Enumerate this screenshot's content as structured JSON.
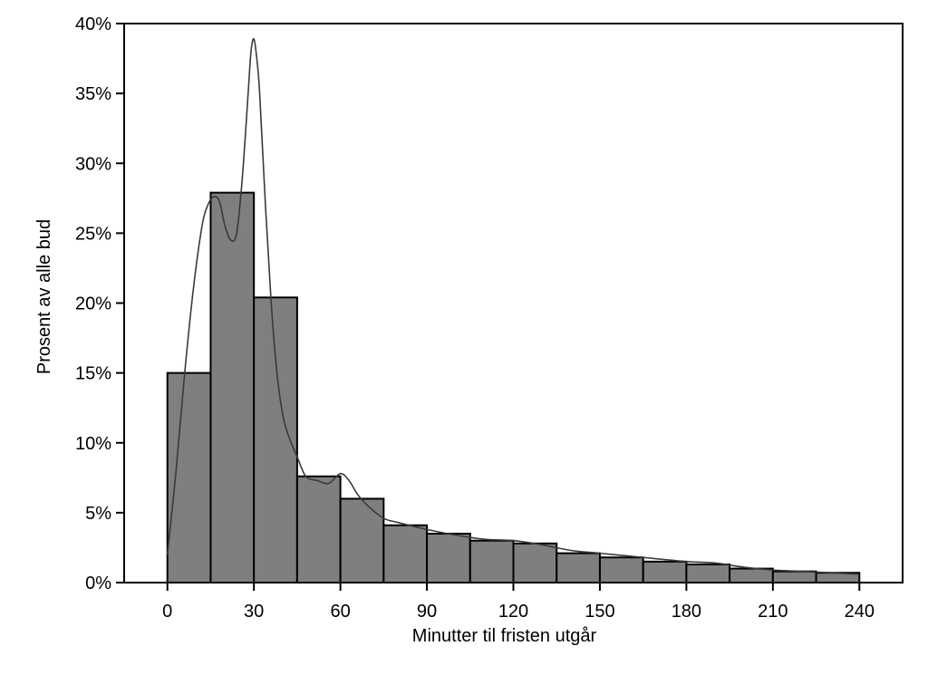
{
  "chart_data": {
    "type": "bar",
    "xlabel": "Minutter til fristen utgår",
    "ylabel": "Prosent av alle bud",
    "xlim": [
      -15,
      255
    ],
    "ylim": [
      0,
      40
    ],
    "x_ticks": [
      0,
      30,
      60,
      90,
      120,
      150,
      180,
      210,
      240
    ],
    "x_tick_labels": [
      "0",
      "30",
      "60",
      "90",
      "120",
      "150",
      "180",
      "210",
      "240"
    ],
    "y_ticks": [
      0,
      5,
      10,
      15,
      20,
      25,
      30,
      35,
      40
    ],
    "y_tick_labels": [
      "0%",
      "5%",
      "10%",
      "15%",
      "20%",
      "25%",
      "30%",
      "35%",
      "40%"
    ],
    "bin_width": 15,
    "bins": [
      {
        "start": 0,
        "end": 15,
        "value": 15.0
      },
      {
        "start": 15,
        "end": 30,
        "value": 27.9
      },
      {
        "start": 30,
        "end": 45,
        "value": 20.4
      },
      {
        "start": 45,
        "end": 60,
        "value": 7.6
      },
      {
        "start": 60,
        "end": 75,
        "value": 6.0
      },
      {
        "start": 75,
        "end": 90,
        "value": 4.1
      },
      {
        "start": 90,
        "end": 105,
        "value": 3.5
      },
      {
        "start": 105,
        "end": 120,
        "value": 3.0
      },
      {
        "start": 120,
        "end": 135,
        "value": 2.8
      },
      {
        "start": 135,
        "end": 150,
        "value": 2.1
      },
      {
        "start": 150,
        "end": 165,
        "value": 1.8
      },
      {
        "start": 165,
        "end": 180,
        "value": 1.5
      },
      {
        "start": 180,
        "end": 195,
        "value": 1.3
      },
      {
        "start": 195,
        "end": 210,
        "value": 1.0
      },
      {
        "start": 210,
        "end": 225,
        "value": 0.8
      },
      {
        "start": 225,
        "end": 240,
        "value": 0.7
      }
    ],
    "density_curve": {
      "x": [
        0,
        3,
        6,
        9,
        12,
        14,
        16,
        18,
        20,
        22,
        24,
        26,
        28,
        29,
        30,
        31,
        32,
        34,
        36,
        38,
        40,
        42,
        45,
        48,
        52,
        56,
        60,
        63,
        66,
        70,
        75,
        80,
        90,
        100,
        110,
        120,
        130,
        140,
        150,
        160,
        170,
        180,
        190,
        200,
        210,
        220,
        230,
        240
      ],
      "y": [
        2.0,
        8.0,
        15.0,
        21.0,
        25.5,
        27.0,
        27.6,
        27.3,
        25.5,
        24.5,
        25.0,
        29.0,
        35.0,
        38.0,
        38.9,
        37.5,
        35.0,
        27.0,
        20.0,
        15.0,
        12.0,
        10.5,
        9.0,
        7.6,
        7.3,
        7.1,
        7.8,
        7.3,
        6.3,
        5.4,
        4.6,
        4.3,
        3.8,
        3.4,
        3.1,
        3.0,
        2.7,
        2.3,
        2.1,
        1.9,
        1.7,
        1.5,
        1.4,
        1.1,
        0.9,
        0.8,
        0.7,
        0.6
      ]
    }
  }
}
